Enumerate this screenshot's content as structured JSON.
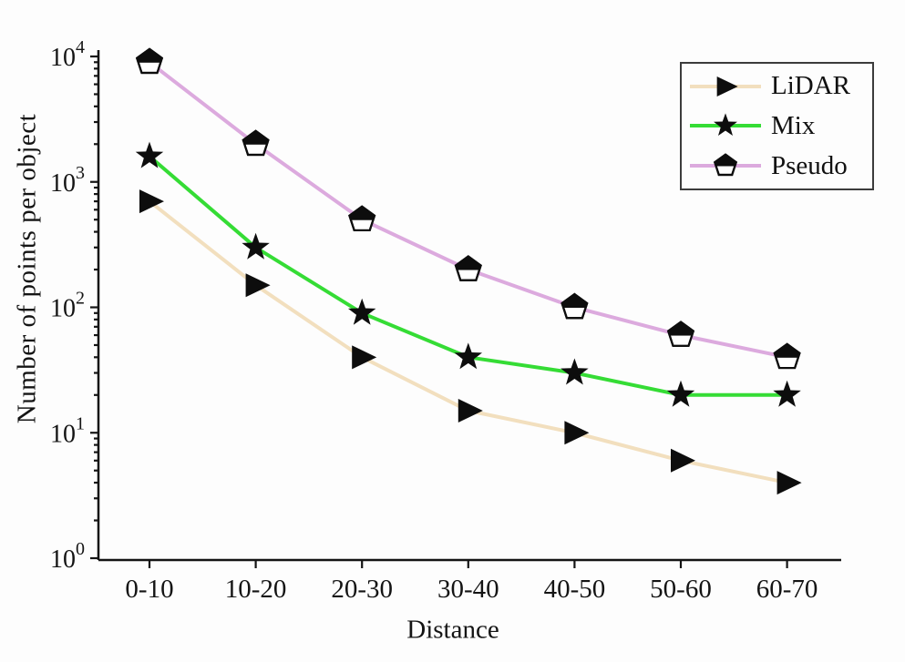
{
  "figure": {
    "background": "#fdfdfd",
    "axis_color": "#141414"
  },
  "chart_data": {
    "type": "line",
    "title": "",
    "xlabel": "Distance",
    "ylabel": "Number of points per object",
    "x_axis_type": "categorical",
    "y_scale": "log",
    "ylim": [
      1,
      10000
    ],
    "y_tick_exponents": [
      0,
      1,
      2,
      3,
      4
    ],
    "y_tick_labels": [
      "10^0",
      "10^1",
      "10^2",
      "10^3",
      "10^4"
    ],
    "categories": [
      "0-10",
      "10-20",
      "20-30",
      "30-40",
      "40-50",
      "50-60",
      "60-70"
    ],
    "grid": false,
    "legend_position": "top-right",
    "series": [
      {
        "name": "LiDAR",
        "marker": "right-triangle",
        "line_color": "#f2dfbe",
        "marker_color": "#0d0d0d",
        "values": [
          700,
          150,
          40,
          15,
          10,
          6,
          4
        ]
      },
      {
        "name": "Mix",
        "marker": "star",
        "line_color": "#35dc35",
        "marker_color": "#0d0d0d",
        "values": [
          1600,
          300,
          90,
          40,
          30,
          20,
          20
        ]
      },
      {
        "name": "Pseudo",
        "marker": "half-filled-pentagon",
        "line_color": "#dcaade",
        "marker_color": "#0d0d0d",
        "values": [
          9000,
          2000,
          500,
          200,
          100,
          60,
          40
        ]
      }
    ]
  }
}
